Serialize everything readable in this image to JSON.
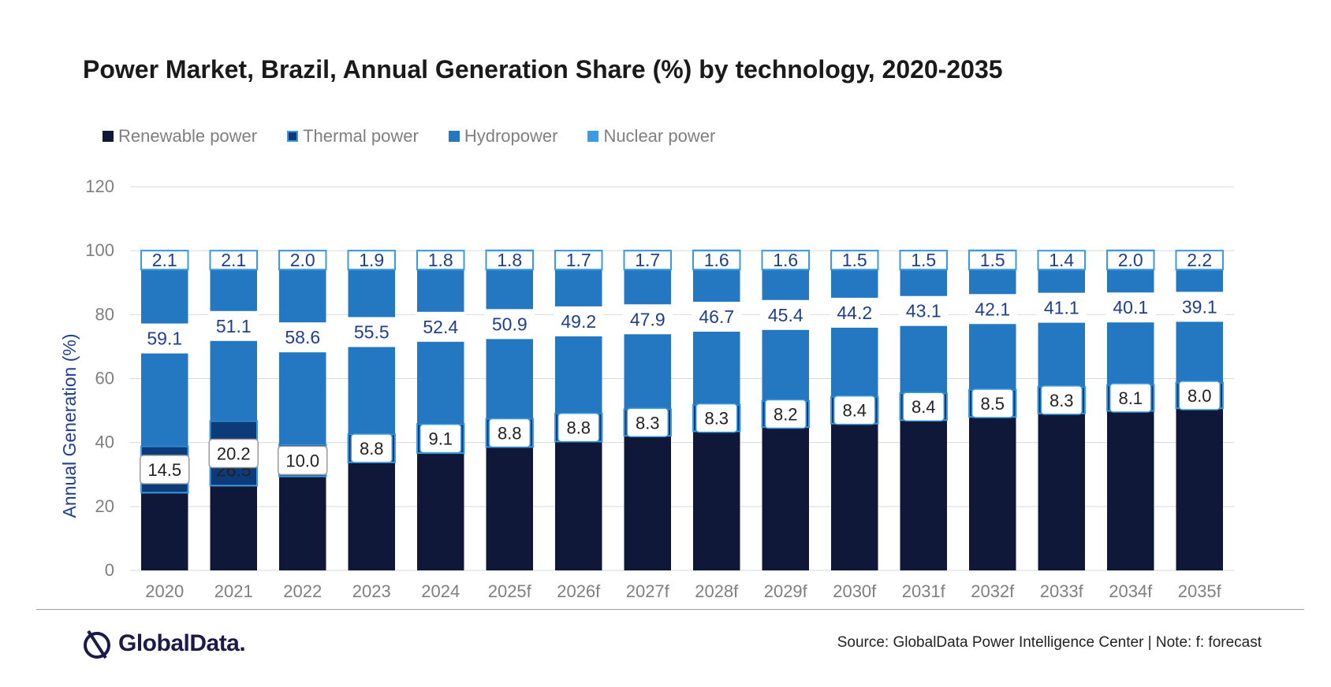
{
  "title": "Power Market, Brazil, Annual Generation Share (%) by technology, 2020-2035",
  "legend": [
    {
      "label": "Renewable power",
      "color": "#0f1838"
    },
    {
      "label": "Thermal power",
      "color": "#0d3a78"
    },
    {
      "label": "Hydropower",
      "color": "#2478c2"
    },
    {
      "label": "Nuclear power",
      "color": "#3b9ae1"
    }
  ],
  "chart_data": {
    "type": "bar",
    "stacked": true,
    "title": "Power Market, Brazil, Annual Generation Share (%) by technology, 2020-2035",
    "ylabel": "Annual Generation (%)",
    "xlabel": "",
    "ylim": [
      0,
      120
    ],
    "yticks": [
      0,
      20,
      40,
      60,
      80,
      100,
      120
    ],
    "grid": true,
    "legend_position": "top-left",
    "categories": [
      "2020",
      "2021",
      "2022",
      "2023",
      "2024",
      "2025f",
      "2026f",
      "2027f",
      "2028f",
      "2029f",
      "2030f",
      "2031f",
      "2032f",
      "2033f",
      "2034f",
      "2035f"
    ],
    "series": [
      {
        "name": "Renewable power",
        "color": "#0f1838",
        "values": [
          24.3,
          26.5,
          29.4,
          33.8,
          36.7,
          38.6,
          40.3,
          42.1,
          43.5,
          44.8,
          45.9,
          47.0,
          48.0,
          49.1,
          49.9,
          50.7
        ]
      },
      {
        "name": "Thermal power",
        "color": "#0d3a78",
        "values": [
          14.5,
          20.2,
          10.0,
          8.8,
          9.1,
          8.8,
          8.8,
          8.3,
          8.3,
          8.2,
          8.4,
          8.4,
          8.5,
          8.3,
          8.1,
          8.0
        ]
      },
      {
        "name": "Hydropower",
        "color": "#2478c2",
        "values": [
          59.1,
          51.1,
          58.6,
          55.5,
          52.4,
          50.9,
          49.2,
          47.9,
          46.7,
          45.4,
          44.2,
          43.1,
          42.1,
          41.1,
          40.1,
          39.1
        ]
      },
      {
        "name": "Nuclear power",
        "color": "#3b9ae1",
        "values": [
          2.1,
          2.1,
          2.0,
          1.9,
          1.8,
          1.8,
          1.7,
          1.7,
          1.6,
          1.6,
          1.5,
          1.5,
          1.5,
          1.4,
          2.0,
          2.2
        ]
      }
    ]
  },
  "footer": {
    "logo_text": "GlobalData.",
    "source": "Source: GlobalData Power Intelligence Center | Note: f: forecast"
  }
}
